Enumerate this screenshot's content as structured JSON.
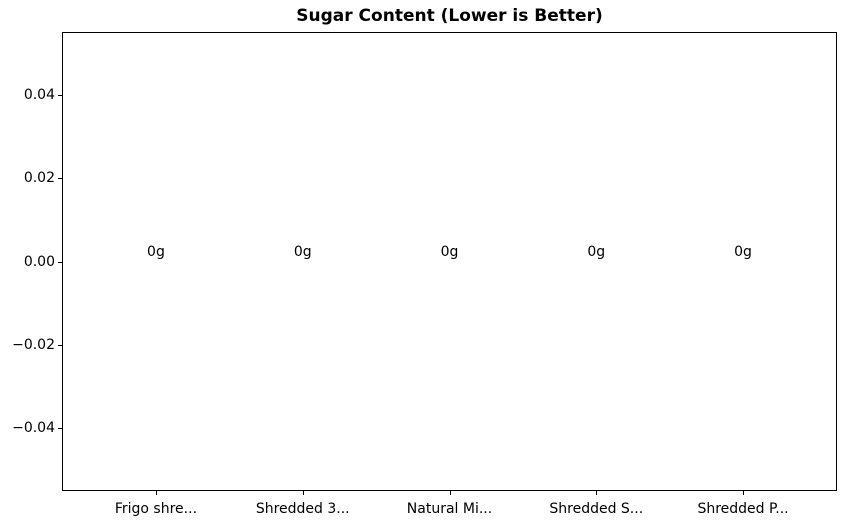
{
  "colors": {
    "text": "#000000",
    "spine": "#000000",
    "background": "#ffffff",
    "bar": "#1f77b4"
  },
  "chart_data": {
    "type": "bar",
    "title": "Sugar Content (Lower is Better)",
    "xlabel": "",
    "ylabel": "",
    "categories": [
      "Frigo shre...",
      "Shredded 3...",
      "Natural Mi...",
      "Shredded S...",
      "Shredded P..."
    ],
    "values": [
      0,
      0,
      0,
      0,
      0
    ],
    "bar_labels": [
      "0g",
      "0g",
      "0g",
      "0g",
      "0g"
    ],
    "yticks": [
      {
        "value": 0.04,
        "label": "0.04"
      },
      {
        "value": 0.02,
        "label": "0.02"
      },
      {
        "value": 0.0,
        "label": "0.00"
      },
      {
        "value": -0.02,
        "label": "−0.02"
      },
      {
        "value": -0.04,
        "label": "−0.04"
      }
    ],
    "ylim": [
      -0.055,
      0.055
    ],
    "xlim": [
      -0.64,
      4.64
    ],
    "grid": false,
    "legend": null
  }
}
